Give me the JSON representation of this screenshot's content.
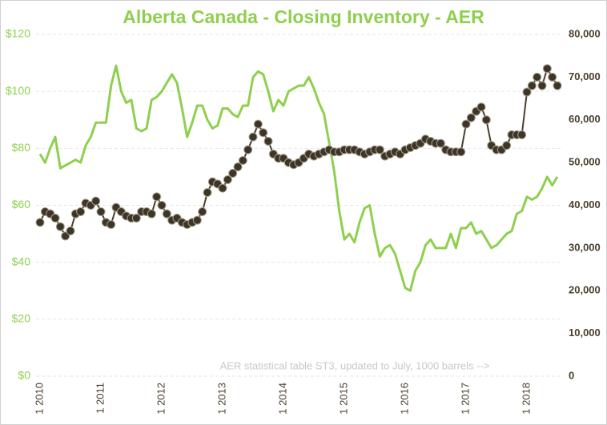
{
  "chart_data": {
    "type": "line",
    "title": "Alberta Canada - Closing Inventory - AER",
    "annotation": "AER statistical table ST3, updated to July, 1000 barrels -->",
    "categories": [
      "1 2010",
      null,
      null,
      null,
      null,
      null,
      null,
      null,
      null,
      null,
      null,
      null,
      "1 2011",
      null,
      null,
      null,
      null,
      null,
      null,
      null,
      null,
      null,
      null,
      null,
      "1 2012",
      null,
      null,
      null,
      null,
      null,
      null,
      null,
      null,
      null,
      null,
      null,
      "1 2013",
      null,
      null,
      null,
      null,
      null,
      null,
      null,
      null,
      null,
      null,
      null,
      "1 2014",
      null,
      null,
      null,
      null,
      null,
      null,
      null,
      null,
      null,
      null,
      null,
      "1 2015",
      null,
      null,
      null,
      null,
      null,
      null,
      null,
      null,
      null,
      null,
      null,
      "1 2016",
      null,
      null,
      null,
      null,
      null,
      null,
      null,
      null,
      null,
      null,
      null,
      "1 2017",
      null,
      null,
      null,
      null,
      null,
      null,
      null,
      null,
      null,
      null,
      null,
      "1 2018",
      null,
      null,
      null,
      null,
      null,
      null
    ],
    "series": [
      {
        "color": "#8ed04e",
        "axis": "y",
        "values": [
          78,
          75,
          80,
          84,
          73,
          74,
          75,
          76,
          75,
          81,
          84,
          89,
          89,
          89,
          102,
          109,
          100,
          96,
          97,
          87,
          86,
          87,
          97,
          98,
          100,
          103,
          106,
          103,
          94,
          84,
          89,
          95,
          95,
          90,
          87,
          88,
          94,
          94,
          92,
          91,
          95,
          95,
          105,
          107,
          106,
          100,
          93,
          97,
          95,
          100,
          101,
          102,
          102,
          105,
          101,
          96,
          92,
          82,
          72,
          58,
          48,
          50,
          47,
          54,
          59,
          60,
          50,
          42,
          45,
          46,
          43,
          37,
          31,
          30,
          37,
          40,
          46,
          48,
          45,
          45,
          45,
          50,
          45,
          52,
          52,
          54,
          50,
          51,
          48,
          45,
          46,
          48,
          50,
          51,
          57,
          58,
          63,
          62,
          63,
          66,
          70,
          67,
          70
        ]
      },
      {
        "color": "#4a3f2e",
        "axis": "y2",
        "markers": true,
        "values": [
          36000,
          38500,
          38000,
          37000,
          35000,
          32800,
          34000,
          38000,
          38500,
          40500,
          40000,
          41000,
          38500,
          36000,
          35500,
          39500,
          38500,
          37500,
          37000,
          37000,
          38500,
          38500,
          38000,
          42000,
          40000,
          38000,
          36500,
          37000,
          36000,
          35500,
          36000,
          36500,
          38500,
          43000,
          45500,
          45000,
          44000,
          46000,
          47500,
          49000,
          50500,
          53000,
          56000,
          59000,
          57000,
          55000,
          52000,
          51000,
          51000,
          50000,
          49500,
          50000,
          51000,
          52000,
          51500,
          52000,
          52500,
          53000,
          52500,
          52500,
          53000,
          53000,
          53000,
          52500,
          52000,
          52500,
          53000,
          53000,
          51500,
          52000,
          52500,
          52000,
          53000,
          53500,
          54000,
          54500,
          55500,
          55000,
          54500,
          54500,
          53000,
          52500,
          52500,
          52500,
          59000,
          60500,
          62000,
          63000,
          60000,
          54000,
          53000,
          53000,
          54000,
          56500,
          56500,
          56500,
          66500,
          68000,
          70000,
          68000,
          72000,
          70000,
          68000
        ]
      }
    ],
    "ylim": [
      0,
      120
    ],
    "yticks": [
      {
        "value": 0,
        "label": "$0"
      },
      {
        "value": 20,
        "label": "$20"
      },
      {
        "value": 40,
        "label": "$40"
      },
      {
        "value": 60,
        "label": "$60"
      },
      {
        "value": 80,
        "label": "$80"
      },
      {
        "value": 100,
        "label": "$100"
      },
      {
        "value": 120,
        "label": "$120"
      }
    ],
    "y2lim": [
      0,
      80000
    ],
    "y2ticks": [
      0,
      {
        "value": 10000,
        "label": "10,000"
      },
      {
        "value": 20000,
        "label": "20,000"
      },
      {
        "value": 30000,
        "label": "30,000"
      },
      {
        "value": 40000,
        "label": "40,000"
      },
      {
        "value": 50000,
        "label": "50,000"
      },
      {
        "value": 60000,
        "label": "60,000"
      },
      {
        "value": 70000,
        "label": "70,000"
      },
      {
        "value": 80000,
        "label": "80,000"
      }
    ],
    "grid": true
  }
}
